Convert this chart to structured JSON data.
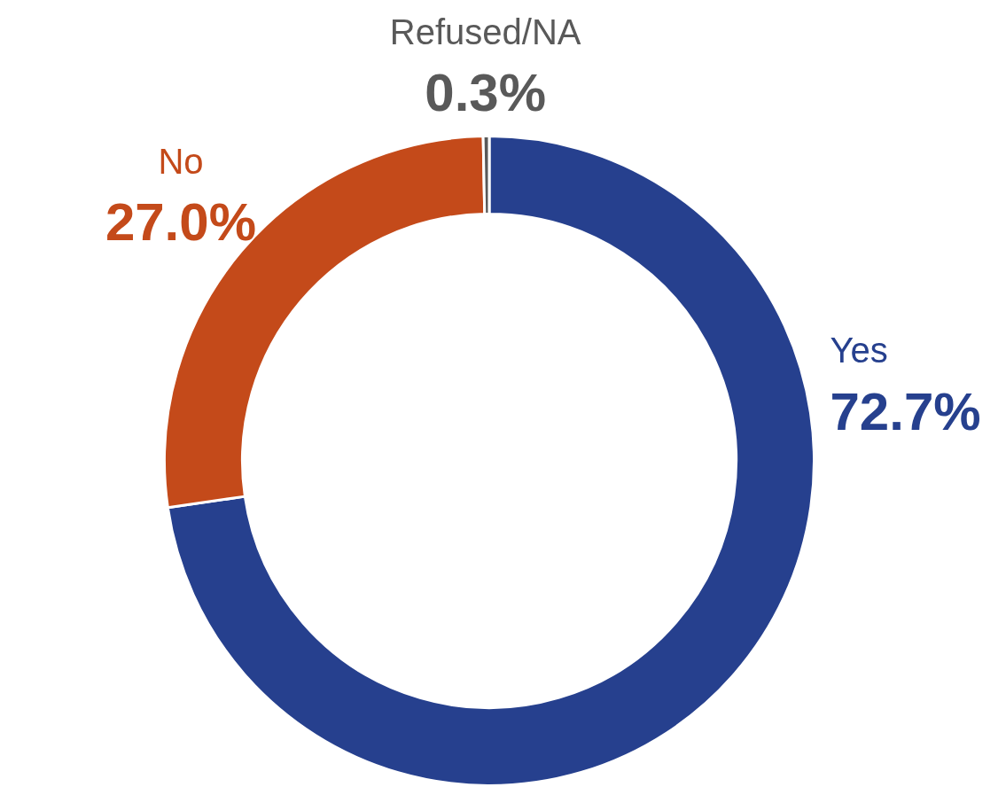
{
  "chart_data": {
    "type": "donut",
    "categories": [
      "Yes",
      "No",
      "Refused/NA"
    ],
    "values": [
      72.7,
      27.0,
      0.3
    ],
    "colors": [
      "#26408e",
      "#c44a1a",
      "#595959"
    ],
    "value_labels": [
      "72.7%",
      "27.0%",
      "0.3%"
    ],
    "legend": false
  }
}
